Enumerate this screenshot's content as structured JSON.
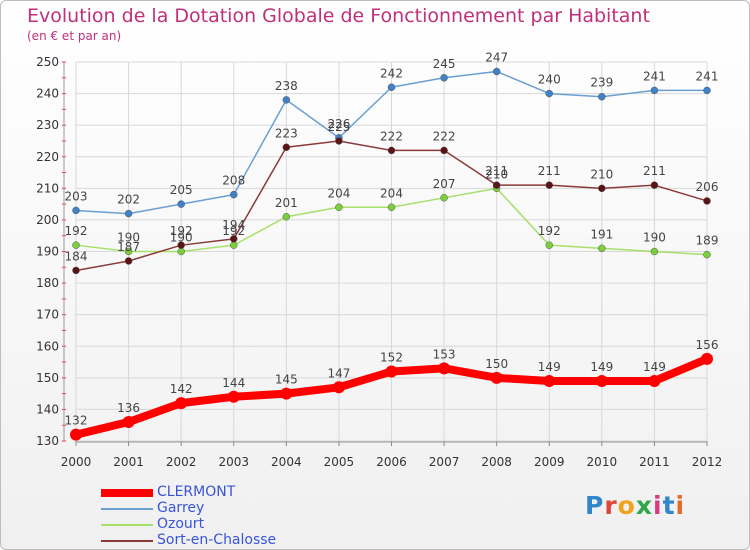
{
  "header": {
    "title": "Evolution de la Dotation Globale de Fonctionnement par Habitant",
    "subtitle": "(en € et par an)"
  },
  "logo": {
    "text": "Proxiti",
    "colors": [
      "#2f86c9",
      "#e0463a",
      "#f3a21b",
      "#2fa84a",
      "#d63c7e",
      "#2f86c9",
      "#e06b2a"
    ]
  },
  "chart_data": {
    "type": "line",
    "title": "Evolution de la Dotation Globale de Fonctionnement par Habitant",
    "subtitle": "(en € et par an)",
    "x": [
      "2000",
      "2001",
      "2002",
      "2003",
      "2004",
      "2005",
      "2006",
      "2007",
      "2008",
      "2009",
      "2010",
      "2011",
      "2012"
    ],
    "ylim": [
      130,
      250
    ],
    "yticks": [
      130,
      140,
      150,
      160,
      170,
      180,
      190,
      200,
      210,
      220,
      230,
      240,
      250
    ],
    "grid": true,
    "legend": "bottom-left",
    "series": [
      {
        "name": "CLERMONT",
        "color": "#ff0000",
        "emphasis": true,
        "values": [
          132,
          136,
          142,
          144,
          145,
          147,
          152,
          153,
          150,
          149,
          149,
          149,
          156
        ]
      },
      {
        "name": "Garrey",
        "color": "#6a9fd4",
        "marker": "#3f82c6",
        "values": [
          203,
          202,
          205,
          208,
          238,
          226,
          242,
          245,
          247,
          240,
          239,
          241,
          241
        ]
      },
      {
        "name": "Ozourt",
        "color": "#a6e06a",
        "marker": "#7ccf3c",
        "values": [
          192,
          190,
          190,
          192,
          201,
          204,
          204,
          207,
          210,
          192,
          191,
          190,
          189
        ]
      },
      {
        "name": "Sort-en-Chalosse",
        "color": "#8a3a3a",
        "marker": "#5a1414",
        "values": [
          184,
          187,
          192,
          194,
          223,
          225,
          222,
          222,
          211,
          211,
          210,
          211,
          206
        ]
      }
    ]
  }
}
